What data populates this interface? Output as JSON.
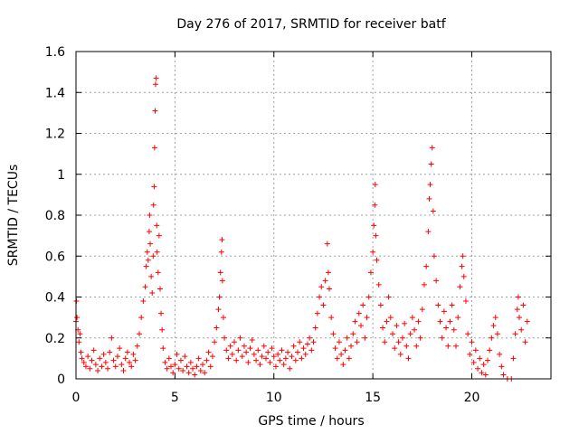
{
  "chart_data": {
    "type": "scatter",
    "title": "Day 276 of 2017, SRMTID for receiver batf",
    "xlabel": "GPS time / hours",
    "ylabel": "SRMTID / TECUs",
    "xlim": [
      0,
      24
    ],
    "ylim": [
      0,
      1.6
    ],
    "x_ticks": [
      0,
      5,
      10,
      15,
      20
    ],
    "x_tick_labels": [
      "0",
      "5",
      "10",
      "15",
      "20"
    ],
    "y_ticks": [
      0,
      0.2,
      0.4,
      0.6,
      0.8,
      1,
      1.2,
      1.4,
      1.6
    ],
    "y_tick_labels": [
      "0",
      "0.2",
      "0.4",
      "0.6",
      "0.8",
      "1",
      "1.2",
      "1.4",
      "1.6"
    ],
    "grid": true,
    "marker": "+",
    "color": "#ff0000",
    "series": [
      {
        "name": "SRMTID",
        "points": [
          [
            0.0,
            0.28
          ],
          [
            0.02,
            0.38
          ],
          [
            0.05,
            0.3
          ],
          [
            0.1,
            0.24
          ],
          [
            0.15,
            0.18
          ],
          [
            0.2,
            0.22
          ],
          [
            0.25,
            0.13
          ],
          [
            0.3,
            0.1
          ],
          [
            0.4,
            0.08
          ],
          [
            0.5,
            0.06
          ],
          [
            0.6,
            0.11
          ],
          [
            0.7,
            0.05
          ],
          [
            0.8,
            0.09
          ],
          [
            0.9,
            0.14
          ],
          [
            1.0,
            0.07
          ],
          [
            1.1,
            0.04
          ],
          [
            1.2,
            0.1
          ],
          [
            1.3,
            0.06
          ],
          [
            1.4,
            0.12
          ],
          [
            1.5,
            0.08
          ],
          [
            1.6,
            0.05
          ],
          [
            1.7,
            0.13
          ],
          [
            1.8,
            0.2
          ],
          [
            1.9,
            0.09
          ],
          [
            2.0,
            0.06
          ],
          [
            2.1,
            0.11
          ],
          [
            2.2,
            0.15
          ],
          [
            2.3,
            0.07
          ],
          [
            2.4,
            0.04
          ],
          [
            2.5,
            0.1
          ],
          [
            2.6,
            0.13
          ],
          [
            2.7,
            0.08
          ],
          [
            2.8,
            0.06
          ],
          [
            2.9,
            0.12
          ],
          [
            3.0,
            0.09
          ],
          [
            3.1,
            0.16
          ],
          [
            3.2,
            0.22
          ],
          [
            3.3,
            0.3
          ],
          [
            3.4,
            0.38
          ],
          [
            3.5,
            0.45
          ],
          [
            3.55,
            0.55
          ],
          [
            3.6,
            0.62
          ],
          [
            3.65,
            0.58
          ],
          [
            3.7,
            0.72
          ],
          [
            3.72,
            0.8
          ],
          [
            3.75,
            0.66
          ],
          [
            3.8,
            0.5
          ],
          [
            3.85,
            0.42
          ],
          [
            3.9,
            0.6
          ],
          [
            3.92,
            0.85
          ],
          [
            3.95,
            0.94
          ],
          [
            3.97,
            1.13
          ],
          [
            4.0,
            1.31
          ],
          [
            4.02,
            1.44
          ],
          [
            4.05,
            1.47
          ],
          [
            4.08,
            0.75
          ],
          [
            4.1,
            0.62
          ],
          [
            4.15,
            0.52
          ],
          [
            4.2,
            0.7
          ],
          [
            4.25,
            0.44
          ],
          [
            4.3,
            0.32
          ],
          [
            4.35,
            0.24
          ],
          [
            4.4,
            0.15
          ],
          [
            4.5,
            0.08
          ],
          [
            4.6,
            0.05
          ],
          [
            4.7,
            0.1
          ],
          [
            4.8,
            0.06
          ],
          [
            4.9,
            0.03
          ],
          [
            5.0,
            0.07
          ],
          [
            5.1,
            0.12
          ],
          [
            5.2,
            0.05
          ],
          [
            5.3,
            0.09
          ],
          [
            5.4,
            0.04
          ],
          [
            5.5,
            0.11
          ],
          [
            5.6,
            0.06
          ],
          [
            5.7,
            0.03
          ],
          [
            5.8,
            0.08
          ],
          [
            5.9,
            0.05
          ],
          [
            6.0,
            0.02
          ],
          [
            6.1,
            0.06
          ],
          [
            6.2,
            0.1
          ],
          [
            6.3,
            0.04
          ],
          [
            6.4,
            0.07
          ],
          [
            6.5,
            0.03
          ],
          [
            6.6,
            0.09
          ],
          [
            6.7,
            0.13
          ],
          [
            6.8,
            0.06
          ],
          [
            6.9,
            0.11
          ],
          [
            7.0,
            0.18
          ],
          [
            7.1,
            0.25
          ],
          [
            7.2,
            0.34
          ],
          [
            7.25,
            0.4
          ],
          [
            7.3,
            0.52
          ],
          [
            7.35,
            0.62
          ],
          [
            7.38,
            0.68
          ],
          [
            7.4,
            0.48
          ],
          [
            7.45,
            0.3
          ],
          [
            7.5,
            0.2
          ],
          [
            7.6,
            0.14
          ],
          [
            7.7,
            0.1
          ],
          [
            7.8,
            0.16
          ],
          [
            7.9,
            0.12
          ],
          [
            8.0,
            0.18
          ],
          [
            8.1,
            0.09
          ],
          [
            8.2,
            0.14
          ],
          [
            8.3,
            0.2
          ],
          [
            8.4,
            0.11
          ],
          [
            8.5,
            0.16
          ],
          [
            8.6,
            0.13
          ],
          [
            8.7,
            0.08
          ],
          [
            8.8,
            0.15
          ],
          [
            8.9,
            0.19
          ],
          [
            9.0,
            0.12
          ],
          [
            9.1,
            0.09
          ],
          [
            9.2,
            0.14
          ],
          [
            9.3,
            0.07
          ],
          [
            9.4,
            0.11
          ],
          [
            9.5,
            0.16
          ],
          [
            9.6,
            0.1
          ],
          [
            9.7,
            0.13
          ],
          [
            9.8,
            0.08
          ],
          [
            9.9,
            0.15
          ],
          [
            10.0,
            0.11
          ],
          [
            10.1,
            0.06
          ],
          [
            10.2,
            0.12
          ],
          [
            10.3,
            0.09
          ],
          [
            10.4,
            0.14
          ],
          [
            10.5,
            0.07
          ],
          [
            10.6,
            0.1
          ],
          [
            10.7,
            0.13
          ],
          [
            10.8,
            0.05
          ],
          [
            10.9,
            0.11
          ],
          [
            11.0,
            0.16
          ],
          [
            11.1,
            0.09
          ],
          [
            11.2,
            0.13
          ],
          [
            11.3,
            0.18
          ],
          [
            11.4,
            0.1
          ],
          [
            11.5,
            0.15
          ],
          [
            11.6,
            0.12
          ],
          [
            11.7,
            0.17
          ],
          [
            11.8,
            0.2
          ],
          [
            11.9,
            0.14
          ],
          [
            12.0,
            0.18
          ],
          [
            12.1,
            0.25
          ],
          [
            12.2,
            0.32
          ],
          [
            12.3,
            0.4
          ],
          [
            12.4,
            0.45
          ],
          [
            12.5,
            0.36
          ],
          [
            12.6,
            0.48
          ],
          [
            12.7,
            0.66
          ],
          [
            12.75,
            0.52
          ],
          [
            12.8,
            0.44
          ],
          [
            12.9,
            0.3
          ],
          [
            13.0,
            0.22
          ],
          [
            13.1,
            0.15
          ],
          [
            13.2,
            0.1
          ],
          [
            13.3,
            0.18
          ],
          [
            13.4,
            0.12
          ],
          [
            13.5,
            0.07
          ],
          [
            13.6,
            0.14
          ],
          [
            13.7,
            0.2
          ],
          [
            13.8,
            0.1
          ],
          [
            13.9,
            0.16
          ],
          [
            14.0,
            0.22
          ],
          [
            14.1,
            0.28
          ],
          [
            14.2,
            0.18
          ],
          [
            14.3,
            0.32
          ],
          [
            14.4,
            0.26
          ],
          [
            14.5,
            0.36
          ],
          [
            14.6,
            0.2
          ],
          [
            14.7,
            0.3
          ],
          [
            14.8,
            0.4
          ],
          [
            14.9,
            0.52
          ],
          [
            15.0,
            0.62
          ],
          [
            15.05,
            0.75
          ],
          [
            15.1,
            0.85
          ],
          [
            15.12,
            0.95
          ],
          [
            15.15,
            0.7
          ],
          [
            15.2,
            0.58
          ],
          [
            15.3,
            0.46
          ],
          [
            15.4,
            0.36
          ],
          [
            15.5,
            0.25
          ],
          [
            15.6,
            0.18
          ],
          [
            15.7,
            0.28
          ],
          [
            15.8,
            0.4
          ],
          [
            15.9,
            0.3
          ],
          [
            16.0,
            0.22
          ],
          [
            16.1,
            0.15
          ],
          [
            16.2,
            0.26
          ],
          [
            16.3,
            0.18
          ],
          [
            16.4,
            0.12
          ],
          [
            16.5,
            0.2
          ],
          [
            16.6,
            0.27
          ],
          [
            16.7,
            0.16
          ],
          [
            16.8,
            0.1
          ],
          [
            16.9,
            0.22
          ],
          [
            17.0,
            0.3
          ],
          [
            17.1,
            0.24
          ],
          [
            17.2,
            0.16
          ],
          [
            17.3,
            0.28
          ],
          [
            17.4,
            0.2
          ],
          [
            17.5,
            0.34
          ],
          [
            17.6,
            0.46
          ],
          [
            17.7,
            0.55
          ],
          [
            17.8,
            0.72
          ],
          [
            17.85,
            0.88
          ],
          [
            17.9,
            0.95
          ],
          [
            17.95,
            1.05
          ],
          [
            18.0,
            1.13
          ],
          [
            18.05,
            0.82
          ],
          [
            18.1,
            0.6
          ],
          [
            18.2,
            0.48
          ],
          [
            18.3,
            0.36
          ],
          [
            18.4,
            0.28
          ],
          [
            18.5,
            0.2
          ],
          [
            18.6,
            0.33
          ],
          [
            18.7,
            0.25
          ],
          [
            18.8,
            0.16
          ],
          [
            18.9,
            0.28
          ],
          [
            19.0,
            0.36
          ],
          [
            19.1,
            0.24
          ],
          [
            19.2,
            0.16
          ],
          [
            19.3,
            0.3
          ],
          [
            19.4,
            0.45
          ],
          [
            19.5,
            0.55
          ],
          [
            19.55,
            0.6
          ],
          [
            19.6,
            0.5
          ],
          [
            19.7,
            0.38
          ],
          [
            19.8,
            0.22
          ],
          [
            19.9,
            0.12
          ],
          [
            20.0,
            0.18
          ],
          [
            20.1,
            0.08
          ],
          [
            20.2,
            0.14
          ],
          [
            20.3,
            0.05
          ],
          [
            20.4,
            0.1
          ],
          [
            20.5,
            0.03
          ],
          [
            20.6,
            0.07
          ],
          [
            20.7,
            0.02
          ],
          [
            20.8,
            0.09
          ],
          [
            20.9,
            0.14
          ],
          [
            21.0,
            0.2
          ],
          [
            21.1,
            0.26
          ],
          [
            21.2,
            0.3
          ],
          [
            21.3,
            0.22
          ],
          [
            21.4,
            0.12
          ],
          [
            21.5,
            0.06
          ],
          [
            21.6,
            0.02
          ],
          [
            21.8,
            0.0
          ],
          [
            22.0,
            0.0
          ],
          [
            22.1,
            0.1
          ],
          [
            22.2,
            0.22
          ],
          [
            22.3,
            0.34
          ],
          [
            22.35,
            0.4
          ],
          [
            22.4,
            0.3
          ],
          [
            22.5,
            0.24
          ],
          [
            22.6,
            0.36
          ],
          [
            22.7,
            0.18
          ],
          [
            22.8,
            0.28
          ]
        ]
      }
    ]
  }
}
